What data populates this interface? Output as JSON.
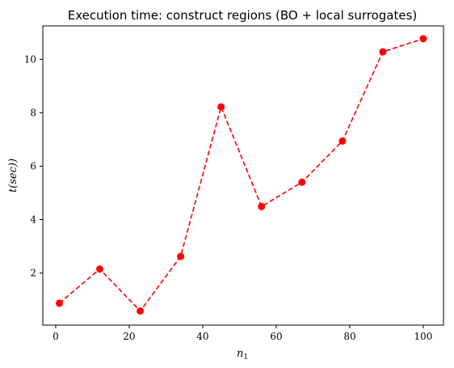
{
  "chart_data": {
    "type": "line",
    "title": "Execution time: construct regions (BO + local surrogates)",
    "xlabel_base": "n",
    "xlabel_sub": "1",
    "ylabel": "t(sec))",
    "xlim": [
      -3.5,
      105.5
    ],
    "ylim": [
      0.05,
      11.25
    ],
    "xticks": [
      0,
      20,
      40,
      60,
      80,
      100
    ],
    "yticks": [
      2,
      4,
      6,
      8,
      10
    ],
    "grid": false,
    "series": [
      {
        "color": "#ff0000",
        "line_style": "dashed",
        "marker": "circle",
        "x": [
          1,
          12,
          23,
          34,
          45,
          56,
          67,
          78,
          89,
          100
        ],
        "y": [
          0.87,
          2.15,
          0.58,
          2.62,
          8.22,
          4.49,
          5.4,
          6.94,
          10.28,
          10.77
        ]
      }
    ]
  }
}
